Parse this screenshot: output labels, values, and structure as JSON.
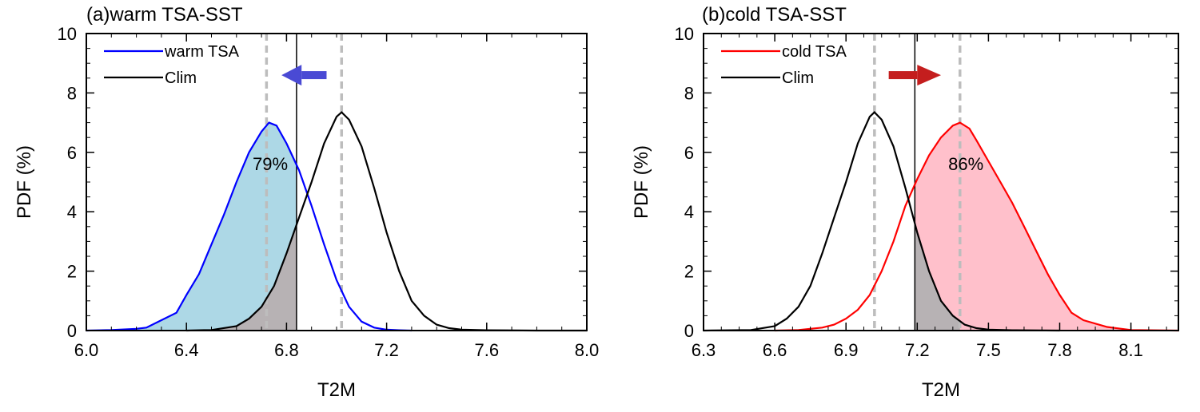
{
  "chart_data": [
    {
      "type": "line",
      "title": "(a)warm TSA-SST",
      "xlabel": "T2M",
      "ylabel": "PDF (%)",
      "xlim": [
        6.0,
        8.0
      ],
      "ylim": [
        0,
        10
      ],
      "xticks": [
        "6.0",
        "6.4",
        "6.8",
        "7.2",
        "7.6",
        "8.0"
      ],
      "xtick_values": [
        6.0,
        6.4,
        6.8,
        7.2,
        7.6,
        8.0
      ],
      "yticks": [
        "0",
        "2",
        "4",
        "6",
        "8",
        "10"
      ],
      "ytick_values": [
        0,
        2,
        4,
        6,
        8,
        10
      ],
      "legend_position": "top-left",
      "series": [
        {
          "name": "warm TSA",
          "color": "#0000ff",
          "fill_color": "#add8e6",
          "x": [
            6.0,
            6.1,
            6.2,
            6.24,
            6.3,
            6.36,
            6.4,
            6.45,
            6.5,
            6.55,
            6.6,
            6.65,
            6.7,
            6.73,
            6.76,
            6.8,
            6.85,
            6.9,
            6.95,
            7.0,
            7.05,
            7.1,
            7.15,
            7.2,
            7.25,
            7.3
          ],
          "values": [
            0.0,
            0.02,
            0.06,
            0.1,
            0.35,
            0.6,
            1.2,
            1.9,
            2.9,
            3.9,
            5.0,
            6.0,
            6.7,
            7.0,
            6.9,
            6.3,
            5.4,
            4.2,
            2.9,
            1.7,
            0.8,
            0.3,
            0.1,
            0.03,
            0.01,
            0.0
          ]
        },
        {
          "name": "Clim",
          "color": "#000000",
          "x": [
            6.4,
            6.5,
            6.6,
            6.65,
            6.7,
            6.75,
            6.8,
            6.85,
            6.9,
            6.95,
            7.0,
            7.02,
            7.05,
            7.1,
            7.15,
            7.2,
            7.25,
            7.3,
            7.35,
            7.4,
            7.45,
            7.5,
            7.6,
            7.8,
            8.0
          ],
          "values": [
            0.0,
            0.02,
            0.15,
            0.4,
            0.8,
            1.5,
            2.6,
            3.8,
            5.0,
            6.3,
            7.2,
            7.35,
            7.1,
            6.2,
            4.8,
            3.3,
            2.0,
            1.0,
            0.5,
            0.2,
            0.08,
            0.03,
            0.01,
            0.0,
            0.0
          ]
        }
      ],
      "dashed_lines_x": [
        6.72,
        7.02
      ],
      "threshold_x": 6.84,
      "annotation": "79%",
      "arrow": {
        "direction": "left",
        "color": "#4a4ad4"
      }
    },
    {
      "type": "line",
      "title": "(b)cold TSA-SST",
      "xlabel": "T2M",
      "ylabel": "PDF (%)",
      "xlim": [
        6.3,
        8.3
      ],
      "ylim": [
        0,
        10
      ],
      "xticks": [
        "6.3",
        "6.6",
        "6.9",
        "7.2",
        "7.5",
        "7.8",
        "8.1"
      ],
      "xtick_values": [
        6.3,
        6.6,
        6.9,
        7.2,
        7.5,
        7.8,
        8.1
      ],
      "yticks": [
        "0",
        "2",
        "4",
        "6",
        "8",
        "10"
      ],
      "ytick_values": [
        0,
        2,
        4,
        6,
        8,
        10
      ],
      "legend_position": "top-left",
      "series": [
        {
          "name": "cold TSA",
          "color": "#ff0000",
          "fill_color": "#ffc0cb",
          "x": [
            6.6,
            6.7,
            6.8,
            6.85,
            6.9,
            6.95,
            7.0,
            7.05,
            7.1,
            7.15,
            7.2,
            7.25,
            7.3,
            7.35,
            7.38,
            7.42,
            7.45,
            7.5,
            7.55,
            7.6,
            7.65,
            7.7,
            7.75,
            7.8,
            7.85,
            7.9,
            8.0,
            8.1,
            8.3
          ],
          "values": [
            0.0,
            0.02,
            0.1,
            0.2,
            0.4,
            0.7,
            1.2,
            2.0,
            3.0,
            4.2,
            5.1,
            5.9,
            6.5,
            6.9,
            7.0,
            6.8,
            6.4,
            5.7,
            5.0,
            4.3,
            3.5,
            2.7,
            1.9,
            1.2,
            0.6,
            0.35,
            0.12,
            0.02,
            0.0
          ]
        },
        {
          "name": "Clim",
          "color": "#000000",
          "x": [
            6.3,
            6.5,
            6.6,
            6.65,
            6.7,
            6.75,
            6.8,
            6.85,
            6.9,
            6.95,
            7.0,
            7.02,
            7.05,
            7.1,
            7.15,
            7.2,
            7.25,
            7.3,
            7.35,
            7.4,
            7.45,
            7.5,
            7.6,
            7.8
          ],
          "values": [
            0.0,
            0.02,
            0.15,
            0.4,
            0.8,
            1.5,
            2.6,
            3.8,
            5.0,
            6.3,
            7.2,
            7.35,
            7.1,
            6.2,
            4.8,
            3.3,
            2.0,
            1.0,
            0.5,
            0.2,
            0.08,
            0.03,
            0.01,
            0.0
          ]
        }
      ],
      "dashed_lines_x": [
        7.02,
        7.38
      ],
      "threshold_x": 7.19,
      "annotation": "86%",
      "arrow": {
        "direction": "right",
        "color": "#c41e1e"
      }
    }
  ]
}
